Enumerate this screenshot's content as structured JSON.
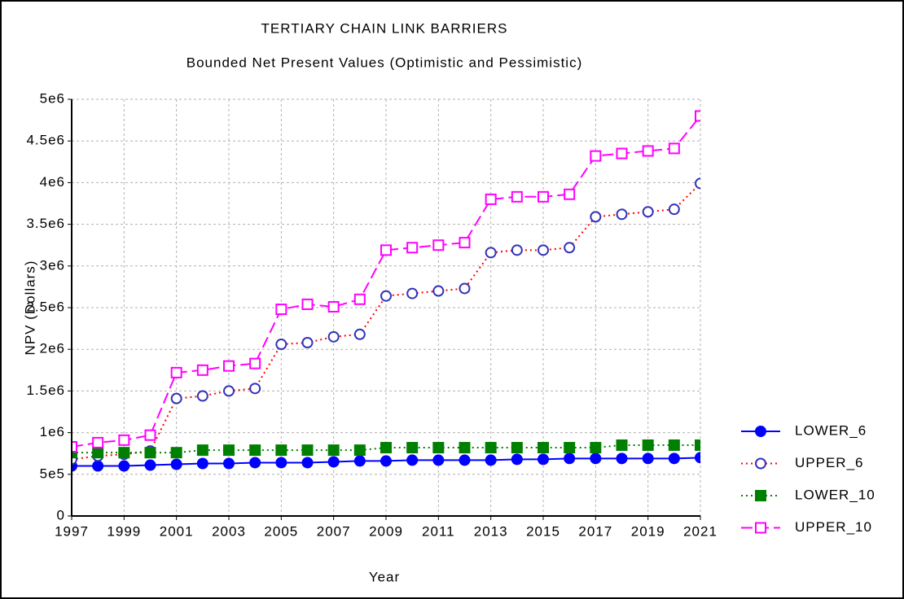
{
  "chart_data": {
    "type": "line",
    "title": "TERTIARY CHAIN LINK BARRIERS",
    "subtitle": "Bounded Net Present Values (Optimistic and Pessimistic)",
    "x_label": "Year",
    "y_label": "NPV (Dollars)",
    "x": [
      1997,
      1998,
      1999,
      2000,
      2001,
      2002,
      2003,
      2004,
      2005,
      2006,
      2007,
      2008,
      2009,
      2010,
      2011,
      2012,
      2013,
      2014,
      2015,
      2016,
      2017,
      2018,
      2019,
      2020,
      2021
    ],
    "xlim": [
      1997,
      2021
    ],
    "xticks": [
      1997,
      1999,
      2001,
      2003,
      2005,
      2007,
      2009,
      2011,
      2013,
      2015,
      2017,
      2019,
      2021
    ],
    "ylim": [
      0,
      5000000
    ],
    "yticks": [
      0,
      {
        "value": 500000,
        "label": "5e5"
      },
      {
        "value": 1000000,
        "label": "1e6"
      },
      {
        "value": 1500000,
        "label": "1.5e6"
      },
      {
        "value": 2000000,
        "label": "2e6"
      },
      {
        "value": 2500000,
        "label": "2.5e6"
      },
      {
        "value": 3000000,
        "label": "3e6"
      },
      {
        "value": 3500000,
        "label": "3.5e6"
      },
      {
        "value": 4000000,
        "label": "4e6"
      },
      {
        "value": 4500000,
        "label": "4.5e6"
      },
      {
        "value": 5000000,
        "label": "5e6"
      }
    ],
    "grid": true,
    "legend": "right",
    "series": [
      {
        "name": "LOWER_6",
        "color": "#0000ff",
        "marker_color": "#0000ff",
        "marker": "circle",
        "filled": true,
        "dash": "solid",
        "values": [
          600000,
          600000,
          600000,
          610000,
          620000,
          630000,
          630000,
          640000,
          640000,
          640000,
          650000,
          660000,
          660000,
          670000,
          670000,
          670000,
          670000,
          680000,
          680000,
          690000,
          690000,
          690000,
          690000,
          690000,
          700000
        ]
      },
      {
        "name": "UPPER_6",
        "color": "#ff0000",
        "marker_color": "#3333bb",
        "marker": "circle",
        "filled": false,
        "dash": "dotted",
        "values": [
          680000,
          720000,
          740000,
          780000,
          1410000,
          1440000,
          1500000,
          1530000,
          2060000,
          2080000,
          2150000,
          2180000,
          2640000,
          2670000,
          2700000,
          2730000,
          3160000,
          3190000,
          3190000,
          3220000,
          3590000,
          3620000,
          3650000,
          3680000,
          3990000
        ]
      },
      {
        "name": "LOWER_10",
        "color": "#008000",
        "marker_color": "#008000",
        "marker": "square",
        "filled": true,
        "dash": "dotted",
        "values": [
          760000,
          760000,
          760000,
          760000,
          760000,
          790000,
          790000,
          790000,
          790000,
          790000,
          790000,
          790000,
          820000,
          820000,
          820000,
          820000,
          820000,
          820000,
          820000,
          820000,
          820000,
          850000,
          850000,
          850000,
          850000
        ]
      },
      {
        "name": "UPPER_10",
        "color": "#ff00ff",
        "marker_color": "#ff00ff",
        "marker": "square",
        "filled": false,
        "dash": "dashed",
        "values": [
          830000,
          880000,
          910000,
          970000,
          1720000,
          1750000,
          1800000,
          1830000,
          2480000,
          2540000,
          2510000,
          2600000,
          3190000,
          3220000,
          3250000,
          3280000,
          3800000,
          3830000,
          3830000,
          3860000,
          4320000,
          4350000,
          4380000,
          4410000,
          4800000
        ]
      }
    ]
  }
}
